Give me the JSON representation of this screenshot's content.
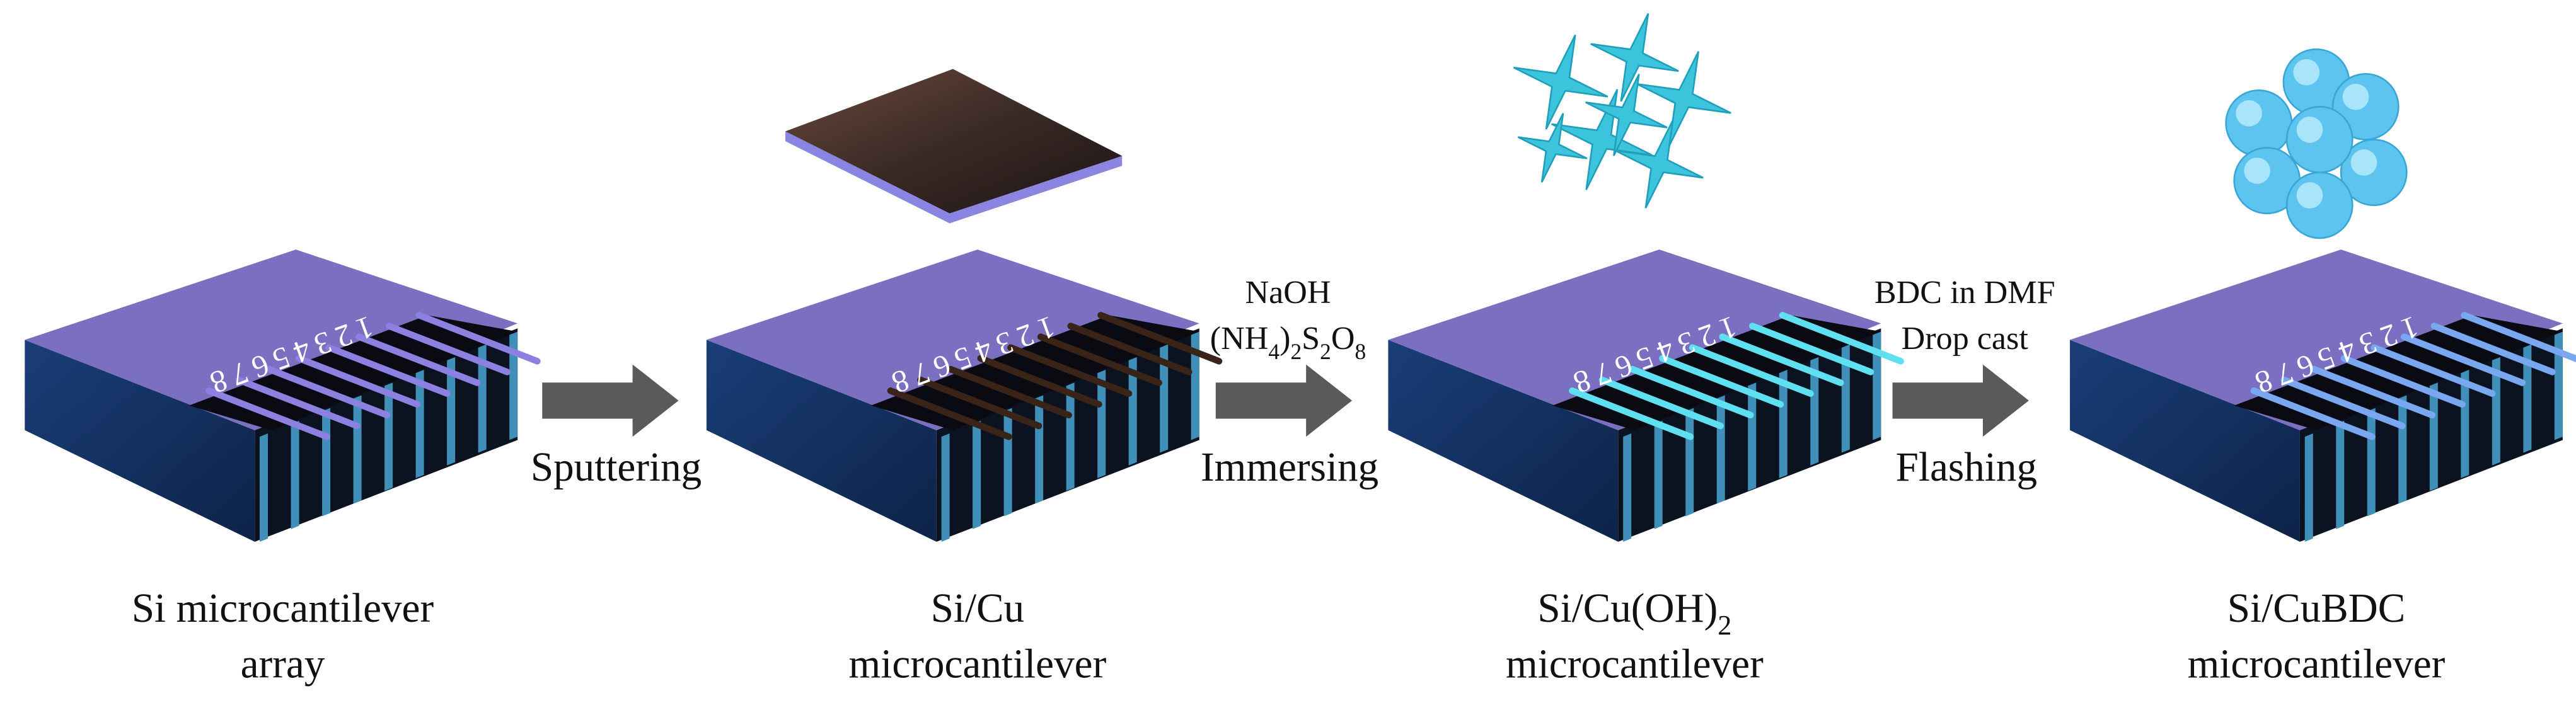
{
  "processes": [
    {
      "reagents": [],
      "action": "Sputtering"
    },
    {
      "reagents": [
        [
          {
            "text": "NaOH"
          }
        ],
        [
          {
            "text": "(NH"
          },
          {
            "sub": "4"
          },
          {
            "text": ")"
          },
          {
            "sub": "2"
          },
          {
            "text": "S"
          },
          {
            "sub": "2"
          },
          {
            "text": "O"
          },
          {
            "sub": "8"
          }
        ]
      ],
      "action": "Immersing"
    },
    {
      "reagents": [
        [
          {
            "text": "BDC in DMF"
          }
        ],
        [
          {
            "text": "Drop cast"
          }
        ]
      ],
      "action": "Flashing"
    }
  ],
  "samples": [
    {
      "numbers": "12345678",
      "caption": [
        [
          {
            "text": "Si microcantilever"
          }
        ],
        [
          {
            "text": "array"
          }
        ]
      ]
    },
    {
      "numbers": "12345678",
      "caption": [
        [
          {
            "text": "Si/Cu"
          }
        ],
        [
          {
            "text": "microcantilever"
          }
        ]
      ]
    },
    {
      "numbers": "12345678",
      "caption": [
        [
          {
            "text": "Si/Cu(OH)"
          },
          {
            "sub": "2"
          }
        ],
        [
          {
            "text": "microcantilever"
          }
        ]
      ]
    },
    {
      "numbers": "12345678",
      "caption": [
        [
          {
            "text": "Si/CuBDC"
          }
        ],
        [
          {
            "text": "microcantilever"
          }
        ]
      ]
    }
  ]
}
